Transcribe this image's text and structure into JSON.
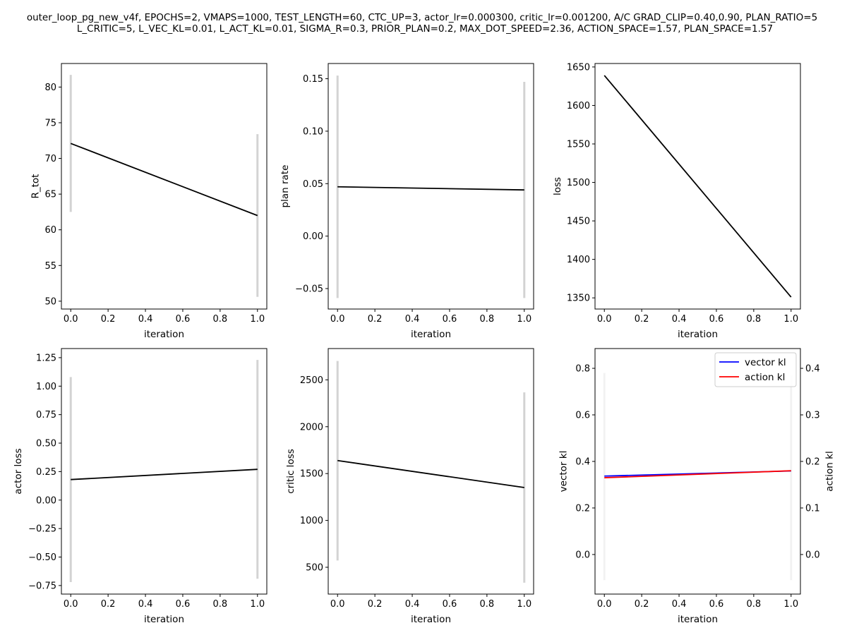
{
  "figure": {
    "title_lines": [
      "outer_loop_pg_new_v4f, EPOCHS=2, VMAPS=1000, TEST_LENGTH=60, CTC_UP=3, actor_lr=0.000300, critic_lr=0.001200, A/C GRAD_CLIP=0.40,0.90, PLAN_RATIO=5",
      "L_CRITIC=5, L_VEC_KL=0.01, L_ACT_KL=0.01, SIGMA_R=0.3, PRIOR_PLAN=0.2, MAX_DOT_SPEED=2.36, ACTION_SPACE=1.57, PLAN_SPACE=1.57"
    ]
  },
  "colors": {
    "line": "#000000",
    "errorbar": "#d3d3d3",
    "errorbar_kl": "#f2f2f2",
    "vector_kl": "#0000ff",
    "action_kl": "#ff0000",
    "axes": "#000000"
  },
  "chart_data": [
    {
      "type": "line",
      "xlabel": "iteration",
      "ylabel": "R_tot",
      "x": [
        0,
        1
      ],
      "xlim": [
        -0.05,
        1.05
      ],
      "xticks": [
        "0.0",
        "0.2",
        "0.4",
        "0.6",
        "0.8",
        "1.0"
      ],
      "xtick_values": [
        0,
        0.2,
        0.4,
        0.6,
        0.8,
        1.0
      ],
      "ylim": [
        48.9,
        83.3
      ],
      "yticks": [
        "50",
        "55",
        "60",
        "65",
        "70",
        "75",
        "80"
      ],
      "ytick_values": [
        50,
        55,
        60,
        65,
        70,
        75,
        80
      ],
      "series": [
        {
          "values": [
            72.1,
            62.0
          ],
          "err_low": [
            62.5,
            50.6
          ],
          "err_high": [
            81.7,
            73.4
          ],
          "color": "#000000"
        }
      ],
      "grid": false
    },
    {
      "type": "line",
      "xlabel": "iteration",
      "ylabel": "plan rate",
      "x": [
        0,
        1
      ],
      "xlim": [
        -0.05,
        1.05
      ],
      "xticks": [
        "0.0",
        "0.2",
        "0.4",
        "0.6",
        "0.8",
        "1.0"
      ],
      "xtick_values": [
        0,
        0.2,
        0.4,
        0.6,
        0.8,
        1.0
      ],
      "ylim": [
        -0.0695,
        0.1645
      ],
      "yticks": [
        "−0.05",
        "0.00",
        "0.05",
        "0.10",
        "0.15"
      ],
      "ytick_values": [
        -0.05,
        0,
        0.05,
        0.1,
        0.15
      ],
      "series": [
        {
          "values": [
            0.047,
            0.044
          ],
          "err_low": [
            -0.059,
            -0.059
          ],
          "err_high": [
            0.153,
            0.147
          ],
          "color": "#000000"
        }
      ],
      "grid": false
    },
    {
      "type": "line",
      "xlabel": "iteration",
      "ylabel": "loss",
      "x": [
        0,
        1
      ],
      "xlim": [
        -0.05,
        1.05
      ],
      "xticks": [
        "0.0",
        "0.2",
        "0.4",
        "0.6",
        "0.8",
        "1.0"
      ],
      "xtick_values": [
        0,
        0.2,
        0.4,
        0.6,
        0.8,
        1.0
      ],
      "ylim": [
        1335.5,
        1654.5
      ],
      "yticks": [
        "1350",
        "1400",
        "1450",
        "1500",
        "1550",
        "1600",
        "1650"
      ],
      "ytick_values": [
        1350,
        1400,
        1450,
        1500,
        1550,
        1600,
        1650
      ],
      "series": [
        {
          "values": [
            1639,
            1351
          ],
          "color": "#000000"
        }
      ],
      "grid": false
    },
    {
      "type": "line",
      "xlabel": "iteration",
      "ylabel": "actor loss",
      "x": [
        0,
        1
      ],
      "xlim": [
        -0.05,
        1.05
      ],
      "xticks": [
        "0.0",
        "0.2",
        "0.4",
        "0.6",
        "0.8",
        "1.0"
      ],
      "xtick_values": [
        0,
        0.2,
        0.4,
        0.6,
        0.8,
        1.0
      ],
      "ylim": [
        -0.825,
        1.33
      ],
      "yticks": [
        "−0.75",
        "−0.50",
        "−0.25",
        "0.00",
        "0.25",
        "0.50",
        "0.75",
        "1.00",
        "1.25"
      ],
      "ytick_values": [
        -0.75,
        -0.5,
        -0.25,
        0,
        0.25,
        0.5,
        0.75,
        1.0,
        1.25
      ],
      "series": [
        {
          "values": [
            0.18,
            0.27
          ],
          "err_low": [
            -0.72,
            -0.69
          ],
          "err_high": [
            1.08,
            1.23
          ],
          "color": "#000000"
        }
      ],
      "grid": false
    },
    {
      "type": "line",
      "xlabel": "iteration",
      "ylabel": "critic loss",
      "x": [
        0,
        1
      ],
      "xlim": [
        -0.05,
        1.05
      ],
      "xticks": [
        "0.0",
        "0.2",
        "0.4",
        "0.6",
        "0.8",
        "1.0"
      ],
      "xtick_values": [
        0,
        0.2,
        0.4,
        0.6,
        0.8,
        1.0
      ],
      "ylim": [
        214,
        2834
      ],
      "yticks": [
        "500",
        "1000",
        "1500",
        "2000",
        "2500"
      ],
      "ytick_values": [
        500,
        1000,
        1500,
        2000,
        2500
      ],
      "series": [
        {
          "values": [
            1639,
            1351
          ],
          "err_low": [
            573,
            335
          ],
          "err_high": [
            2701,
            2366
          ],
          "color": "#000000"
        }
      ],
      "grid": false
    },
    {
      "type": "line",
      "xlabel": "iteration",
      "ylabel": "vector kl",
      "ylabel_right": "action kl",
      "x": [
        0,
        1
      ],
      "xlim": [
        -0.05,
        1.05
      ],
      "xticks": [
        "0.0",
        "0.2",
        "0.4",
        "0.6",
        "0.8",
        "1.0"
      ],
      "xtick_values": [
        0,
        0.2,
        0.4,
        0.6,
        0.8,
        1.0
      ],
      "ylim": [
        -0.17,
        0.885
      ],
      "yticks": [
        "0.0",
        "0.2",
        "0.4",
        "0.6",
        "0.8"
      ],
      "ytick_values": [
        0,
        0.2,
        0.4,
        0.6,
        0.8
      ],
      "ylim_right": [
        -0.085,
        0.4425
      ],
      "yticks_right": [
        "0.0",
        "0.1",
        "0.2",
        "0.3",
        "0.4"
      ],
      "ytick_values_right": [
        0,
        0.1,
        0.2,
        0.3,
        0.4
      ],
      "series": [
        {
          "name": "vector kl",
          "axis": "left",
          "values": [
            0.337,
            0.359
          ],
          "err_low": [
            -0.11,
            -0.11
          ],
          "err_high": [
            0.78,
            0.77
          ],
          "color": "#0000ff"
        },
        {
          "name": "action kl",
          "axis": "right",
          "values": [
            0.165,
            0.18
          ],
          "color": "#ff0000"
        }
      ],
      "legend": "upper-right",
      "grid": false
    }
  ]
}
